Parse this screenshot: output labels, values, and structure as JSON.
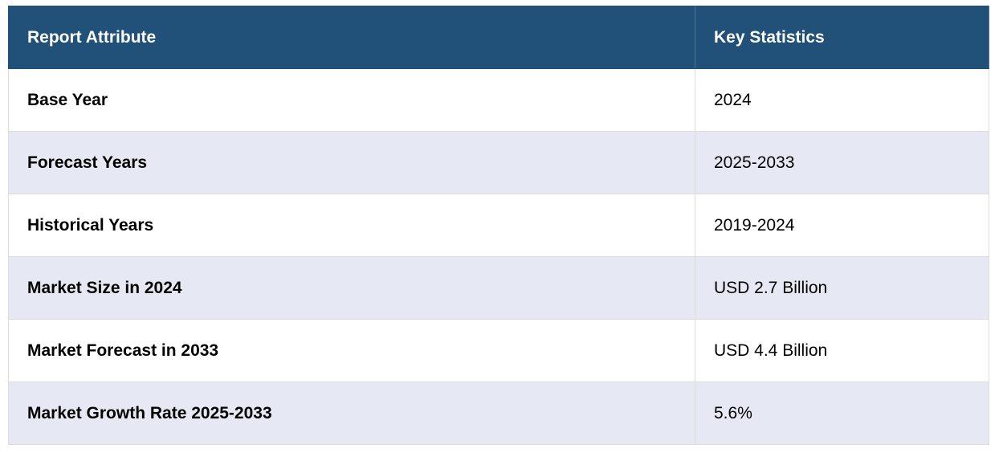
{
  "table": {
    "header": [
      "Report Attribute",
      "Key Statistics"
    ],
    "rows": [
      [
        "Base Year",
        "2024"
      ],
      [
        "Forecast Years",
        "2025-2033"
      ],
      [
        "Historical Years",
        "2019-2024"
      ],
      [
        "Market Size in 2024",
        "USD 2.7 Billion"
      ],
      [
        "Market Forecast in 2033",
        "USD 4.4 Billion"
      ],
      [
        "Market Growth Rate 2025-2033",
        "5.6%"
      ]
    ]
  }
}
